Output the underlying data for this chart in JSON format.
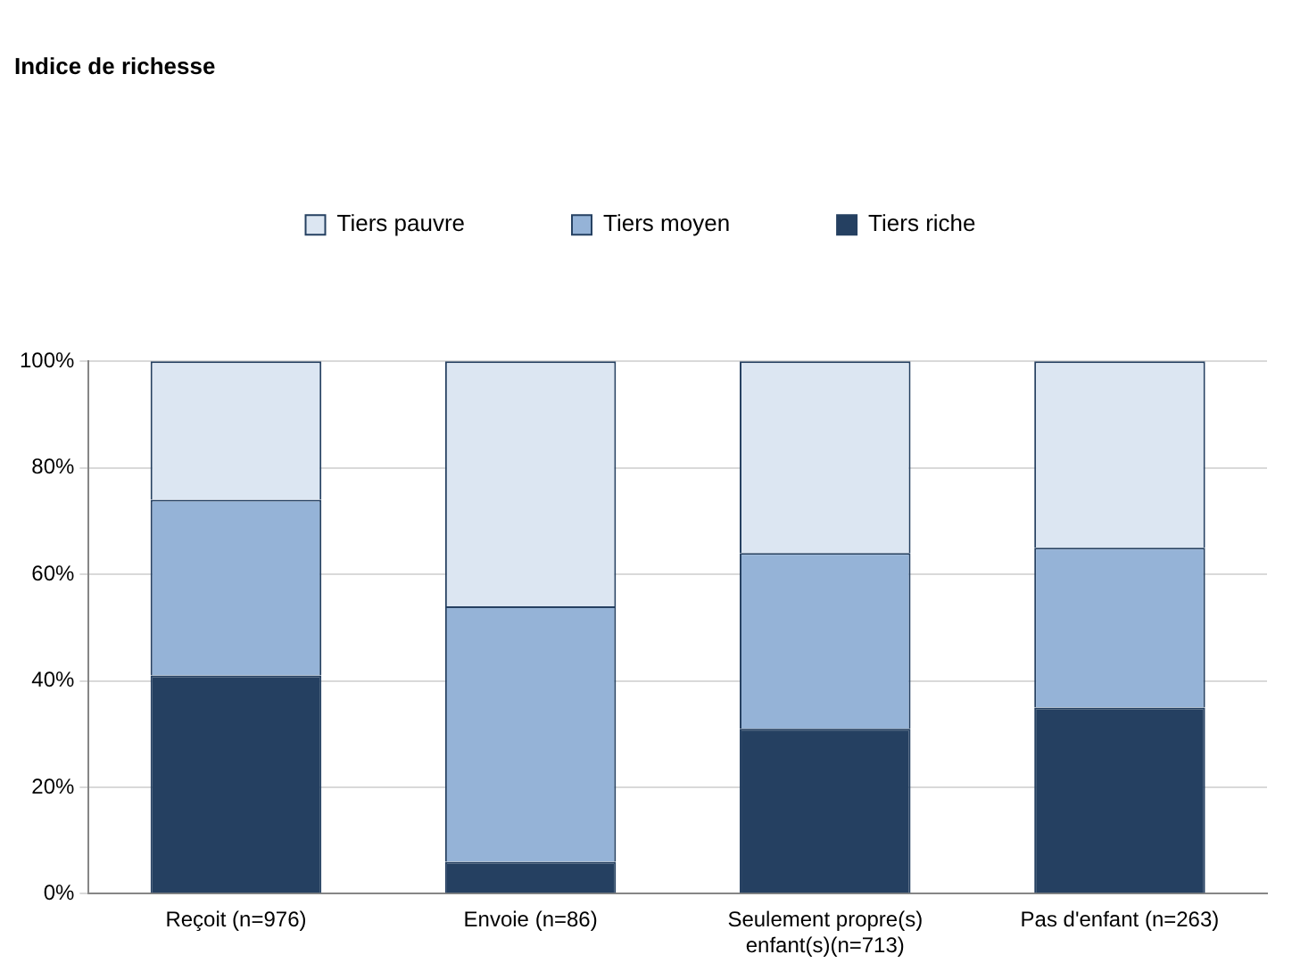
{
  "chart_data": {
    "type": "bar",
    "title": "Indice de richesse",
    "stacked": true,
    "categories": [
      "Reçoit (n=976)",
      "Envoie (n=86)",
      "Seulement propre(s) enfant(s)(n=713)",
      "Pas d'enfant (n=263)"
    ],
    "series": [
      {
        "name": "Tiers riche",
        "color": "#254061",
        "values": [
          41,
          6,
          31,
          35
        ]
      },
      {
        "name": "Tiers moyen",
        "color": "#95b3d7",
        "values": [
          33,
          48,
          33,
          30
        ]
      },
      {
        "name": "Tiers pauvre",
        "color": "#dce6f2",
        "values": [
          26,
          46,
          36,
          35
        ]
      }
    ],
    "ylim": [
      0,
      100
    ],
    "yticks": [
      {
        "value": 0,
        "label": "0%"
      },
      {
        "value": 20,
        "label": "20%"
      },
      {
        "value": 40,
        "label": "40%"
      },
      {
        "value": 60,
        "label": "60%"
      },
      {
        "value": 80,
        "label": "80%"
      },
      {
        "value": 100,
        "label": "100%"
      }
    ],
    "grid": "y",
    "legend": "top"
  }
}
